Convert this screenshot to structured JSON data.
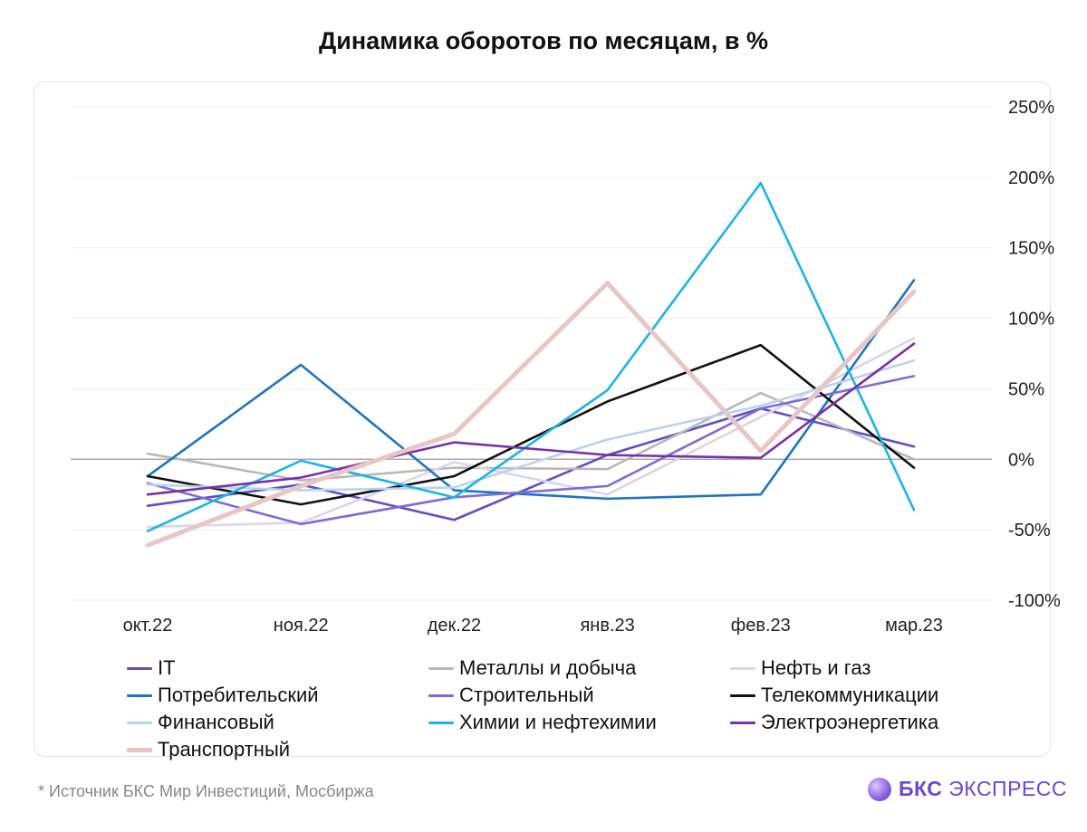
{
  "page": {
    "title": "Динамика оборотов по месяцам, в %",
    "footnote": "*  Источник БКС Мир Инвестиций, Мосбиржа",
    "brand_strong": "БКС",
    "brand_rest": " ЭКСПРЕСС",
    "brand_color": "#6a48d6"
  },
  "chart_data": {
    "type": "line",
    "title": "Динамика оборотов по месяцам, в %",
    "xlabel": "",
    "ylabel": "",
    "categories": [
      "окт.22",
      "ноя.22",
      "дек.22",
      "янв.23",
      "фев.23",
      "мар.23"
    ],
    "y_ticks": [
      250,
      200,
      150,
      100,
      50,
      0,
      -50,
      -100
    ],
    "y_tick_labels": [
      "250%",
      "200%",
      "150%",
      "100%",
      "50%",
      "0%",
      "-50%",
      "-100%"
    ],
    "ylim": [
      -100,
      250
    ],
    "grid": true,
    "y_axis_position": "right",
    "legend_position": "bottom",
    "series": [
      {
        "name": "IT",
        "color": "#5b4fc4",
        "values": [
          -33,
          -18,
          -43,
          3,
          36,
          9
        ]
      },
      {
        "name": "Металлы и добыча",
        "color": "#b8b8b8",
        "values": [
          4,
          -15,
          -6,
          -7,
          47,
          0
        ]
      },
      {
        "name": "Нефть и газ",
        "color": "#d8d6ee",
        "values": [
          -48,
          -45,
          -2,
          -25,
          30,
          86
        ]
      },
      {
        "name": "Потребительский",
        "color": "#1c74c2",
        "values": [
          -12,
          67,
          -22,
          -28,
          -25,
          127
        ]
      },
      {
        "name": "Строительный",
        "color": "#7d6bd6",
        "values": [
          -17,
          -46,
          -27,
          -19,
          36,
          59
        ]
      },
      {
        "name": "Телекоммуникации",
        "color": "#111111",
        "values": [
          -12,
          -32,
          -12,
          41,
          81,
          -6
        ]
      },
      {
        "name": "Финансовый",
        "color": "#b9d3ee",
        "values": [
          -18,
          -22,
          -20,
          14,
          38,
          70
        ]
      },
      {
        "name": "Химии и нефтехимии",
        "color": "#1bb3e8",
        "values": [
          -51,
          -1,
          -27,
          49,
          196,
          -36
        ]
      },
      {
        "name": "Электроэнергетика",
        "color": "#7a2fa8",
        "values": [
          -25,
          -13,
          12,
          3,
          1,
          82
        ]
      },
      {
        "name": "Транспортный",
        "color": "#e8c6c6",
        "values": [
          -61,
          -19,
          18,
          125,
          6,
          119
        ]
      }
    ]
  }
}
